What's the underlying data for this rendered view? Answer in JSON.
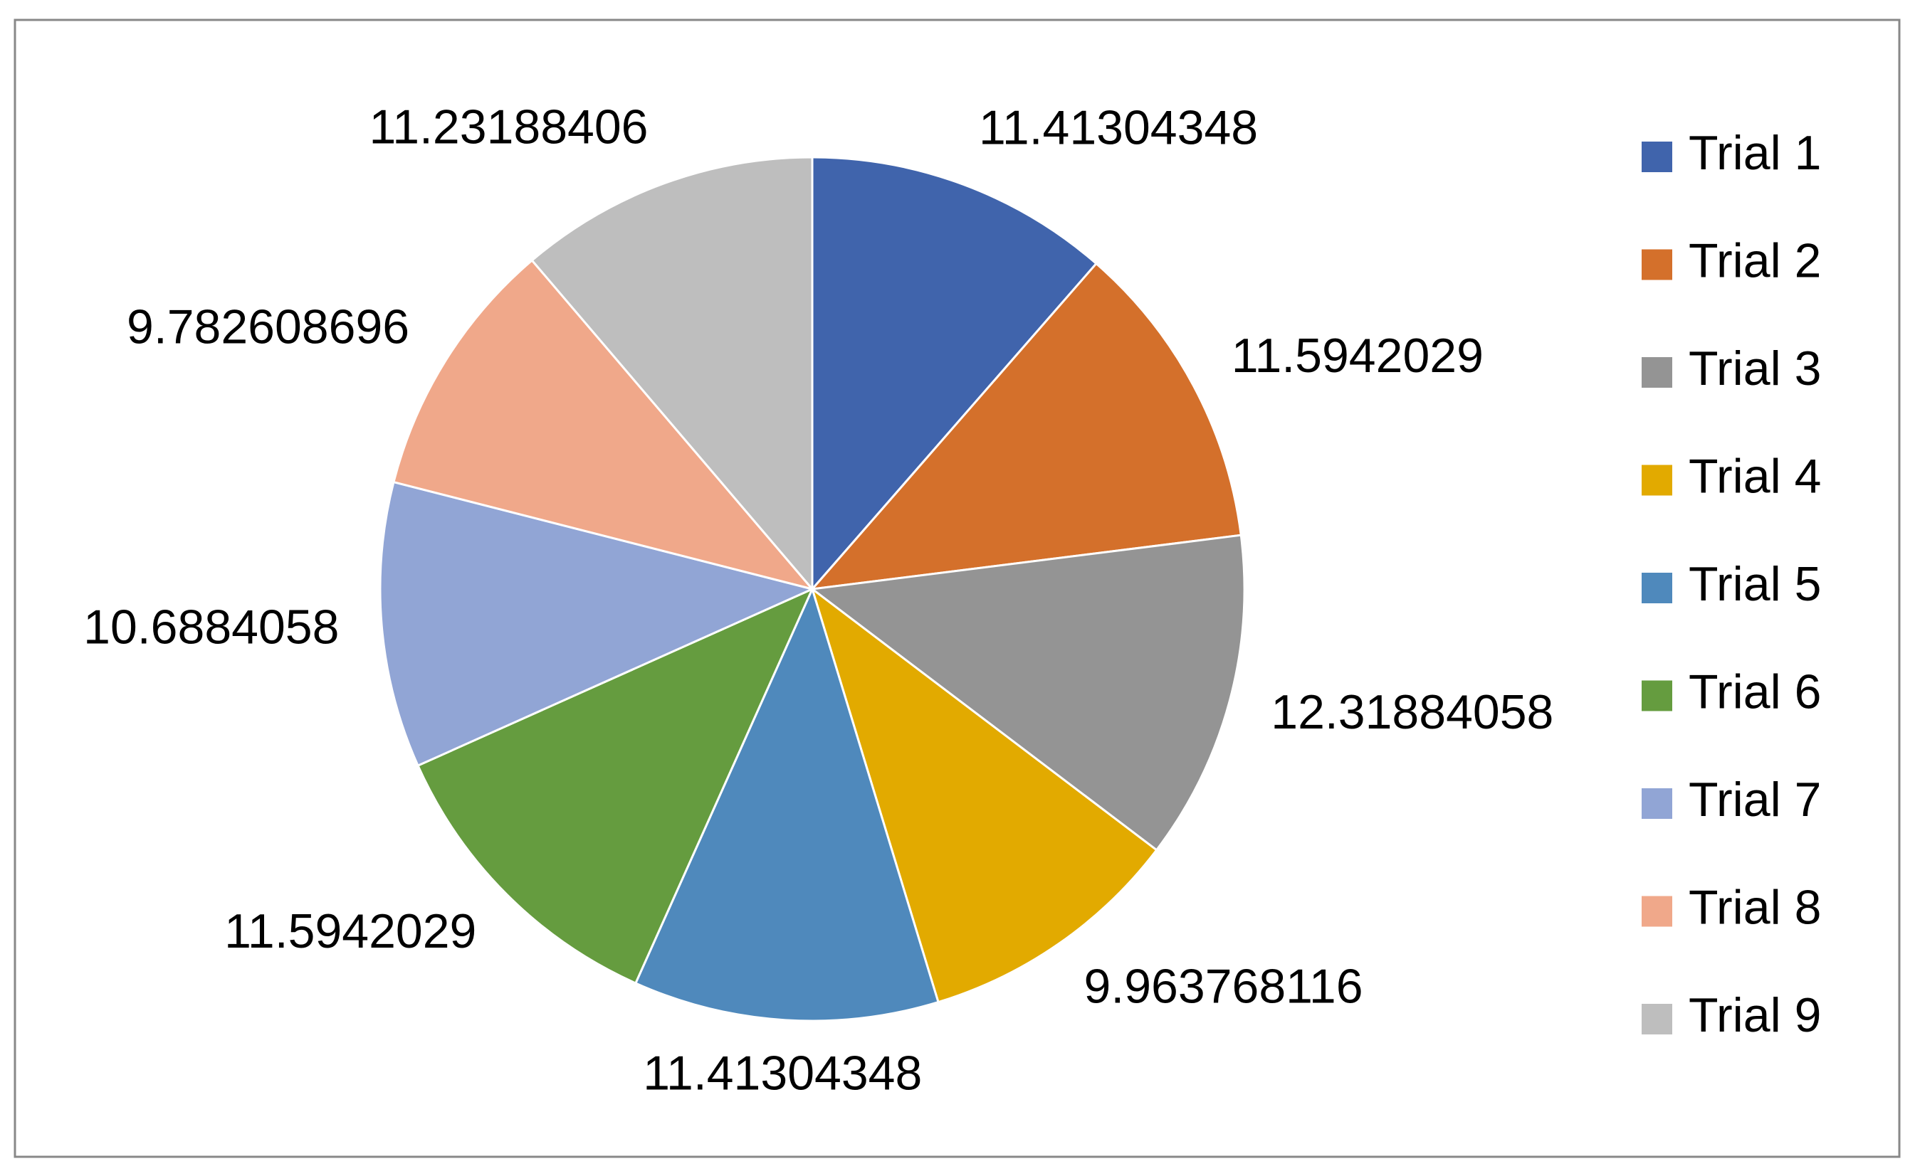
{
  "chart_data": {
    "type": "pie",
    "categories": [
      "Trial 1",
      "Trial 2",
      "Trial 3",
      "Trial 4",
      "Trial 5",
      "Trial 6",
      "Trial 7",
      "Trial 8",
      "Trial 9"
    ],
    "values": [
      11.41304348,
      11.5942029,
      12.31884058,
      9.963768116,
      11.41304348,
      11.5942029,
      10.6884058,
      9.782608696,
      11.23188406
    ],
    "colors": [
      "#4064ac",
      "#d4702b",
      "#949494",
      "#e2aa00",
      "#4f89bc",
      "#659c3f",
      "#91a5d5",
      "#f0a88a",
      "#bebebe"
    ],
    "legend": "right"
  }
}
